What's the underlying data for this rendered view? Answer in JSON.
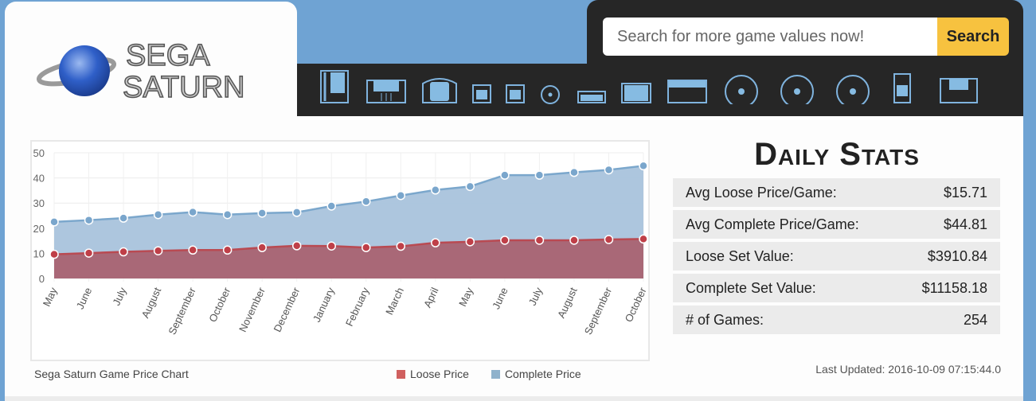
{
  "header": {
    "logo_text": "SEGA SATURN",
    "search_placeholder": "Search for more game values now!",
    "search_button": "Search"
  },
  "nav": {
    "icons": [
      {
        "name": "nes-cartridge-icon",
        "kind": "tall"
      },
      {
        "name": "snes-cartridge-icon",
        "kind": "wide"
      },
      {
        "name": "n64-cartridge-icon",
        "kind": "arch"
      },
      {
        "name": "gameboy-cartridge-icon",
        "kind": "small"
      },
      {
        "name": "gameboy-color-cartridge-icon",
        "kind": "small"
      },
      {
        "name": "gamecube-disc-icon",
        "kind": "minidisc"
      },
      {
        "name": "gba-cartridge-icon",
        "kind": "flat"
      },
      {
        "name": "genesis-cartridge-icon",
        "kind": "square"
      },
      {
        "name": "atari-cartridge-icon",
        "kind": "box"
      },
      {
        "name": "playstation-disc-icon",
        "kind": "disc"
      },
      {
        "name": "saturn-disc-icon",
        "kind": "disc"
      },
      {
        "name": "dreamcast-disc-icon",
        "kind": "disc"
      },
      {
        "name": "handheld-icon",
        "kind": "phone"
      },
      {
        "name": "floppy-icon",
        "kind": "floppy"
      }
    ]
  },
  "chart_data": {
    "type": "area",
    "title": "Sega Saturn Game Price Chart",
    "categories": [
      "May",
      "June",
      "July",
      "August",
      "September",
      "October",
      "November",
      "December",
      "January",
      "February",
      "March",
      "April",
      "May",
      "June",
      "July",
      "August",
      "September",
      "October"
    ],
    "ylim": [
      0,
      50
    ],
    "yticks": [
      0,
      10,
      20,
      30,
      40,
      50
    ],
    "grid": true,
    "legend_placement": "bottom",
    "series": [
      {
        "name": "Loose Price",
        "color": "#b94a52",
        "values": [
          9.6,
          10.1,
          10.6,
          11.0,
          11.3,
          11.3,
          12.3,
          13.0,
          12.9,
          12.3,
          12.8,
          14.2,
          14.6,
          15.2,
          15.2,
          15.2,
          15.5,
          15.7
        ]
      },
      {
        "name": "Complete Price",
        "color": "#7ba7cc",
        "values": [
          22.5,
          23.2,
          24.0,
          25.4,
          26.4,
          25.4,
          26.0,
          26.3,
          28.8,
          30.6,
          33.0,
          35.2,
          36.6,
          41.1,
          41.1,
          42.2,
          43.2,
          44.8
        ]
      }
    ]
  },
  "stats": {
    "title": "Daily Stats",
    "rows": [
      {
        "label": "Avg Loose Price/Game:",
        "value": "$15.71"
      },
      {
        "label": "Avg Complete Price/Game:",
        "value": "$44.81"
      },
      {
        "label": "Loose Set Value:",
        "value": "$3910.84"
      },
      {
        "label": "Complete Set Value:",
        "value": "$11158.18"
      },
      {
        "label": "# of Games:",
        "value": "254"
      }
    ],
    "last_updated": "Last Updated: 2016-10-09 07:15:44.0"
  }
}
